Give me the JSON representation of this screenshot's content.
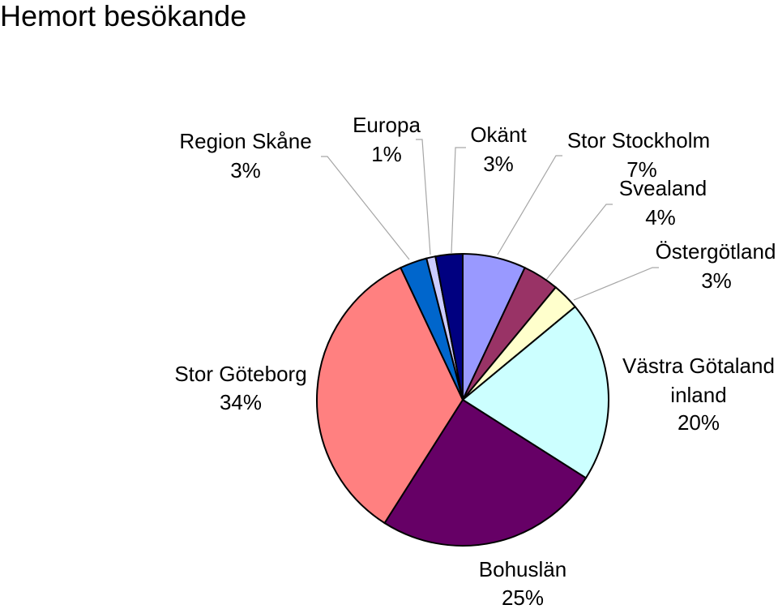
{
  "chart_data": {
    "type": "pie",
    "title": "Hemort besökande",
    "slices": [
      {
        "name": "Stor Stockholm",
        "value": 7,
        "label": "7%",
        "color": "#9999ff"
      },
      {
        "name": "Svealand",
        "value": 4,
        "label": "4%",
        "color": "#993366"
      },
      {
        "name": "Östergötland",
        "value": 3,
        "label": "3%",
        "color": "#ffffcc"
      },
      {
        "name": "Västra Götaland inland",
        "value": 20,
        "label": "20%",
        "color": "#ccffff"
      },
      {
        "name": "Bohuslän",
        "value": 25,
        "label": "25%",
        "color": "#660066"
      },
      {
        "name": "Stor Göteborg",
        "value": 34,
        "label": "34%",
        "color": "#ff8080"
      },
      {
        "name": "Region Skåne",
        "value": 3,
        "label": "3%",
        "color": "#0066cc"
      },
      {
        "name": "Europa",
        "value": 1,
        "label": "1%",
        "color": "#ccccff"
      },
      {
        "name": "Okänt",
        "value": 3,
        "label": "3%",
        "color": "#000080"
      }
    ]
  }
}
